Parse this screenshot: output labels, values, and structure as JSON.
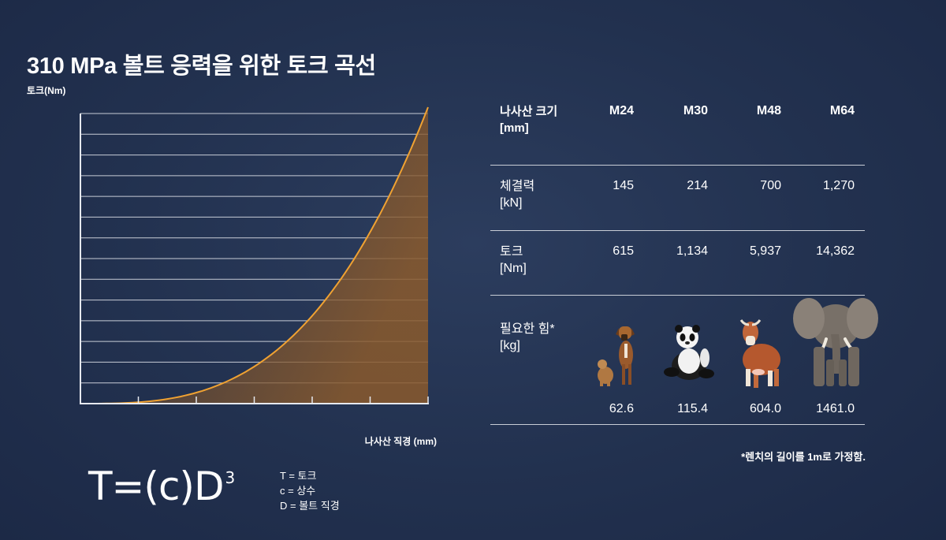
{
  "title": "310 MPa 볼트 응력을 위한 토크 곡선",
  "chart_data": {
    "type": "area",
    "title": "310 MPa 볼트 응력을 위한 토크 곡선",
    "xlabel": "나사산 직경 (mm)",
    "ylabel": "토크(Nm)",
    "curve": "cubic",
    "grid": true,
    "colors": {
      "line": "#f0a232",
      "fill": "#8a5a2c"
    }
  },
  "formula": {
    "main": "T=(c)D",
    "exp": "3"
  },
  "legend": [
    "T = 토크",
    "c = 상수",
    "D = 볼트 직경"
  ],
  "table": {
    "header_label": [
      "나사산 크기",
      "[mm]"
    ],
    "sizes": [
      "M24",
      "M30",
      "M48",
      "M64"
    ],
    "rows": [
      {
        "label": [
          "체결력",
          "[kN]"
        ],
        "values": [
          "145",
          "214",
          "700",
          "1,270"
        ]
      },
      {
        "label": [
          "토크",
          "[Nm]"
        ],
        "values": [
          "615",
          "1,134",
          "5,937",
          "14,362"
        ]
      },
      {
        "label": [
          "필요한 힘*",
          "[kg]"
        ],
        "values": [
          "62.6",
          "115.4",
          "604.0",
          "1461.0"
        ]
      }
    ],
    "animals": [
      "dog-icon",
      "panda-icon",
      "cow-icon",
      "elephant-icon"
    ]
  },
  "footnote": "*렌치의 길이를 1m로 가정함."
}
